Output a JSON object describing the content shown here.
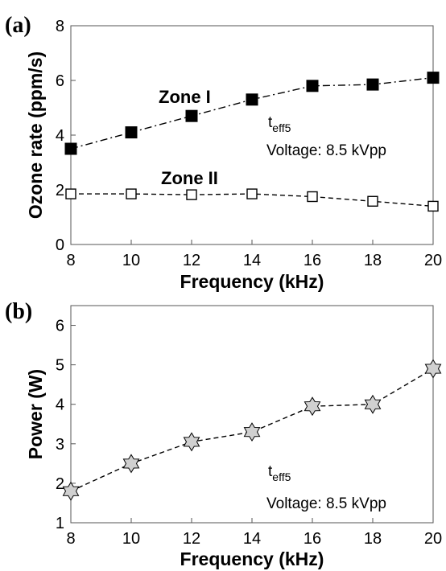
{
  "chart_data": [
    {
      "panel": "(a)",
      "type": "line",
      "xlabel": "Frequency (kHz)",
      "ylabel": "Ozone rate (ppm/s)",
      "xlim": [
        8,
        20
      ],
      "ylim": [
        0,
        8
      ],
      "xticks": [
        8,
        10,
        12,
        14,
        16,
        18,
        20
      ],
      "yticks": [
        0,
        2,
        4,
        6,
        8
      ],
      "grid": false,
      "x": [
        8,
        10,
        12,
        14,
        16,
        18,
        20
      ],
      "series": [
        {
          "name": "Zone I",
          "values": [
            3.5,
            4.1,
            4.7,
            5.3,
            5.8,
            5.85,
            6.1
          ],
          "marker": "filled-square",
          "line": "dash-dot",
          "color": "#000000"
        },
        {
          "name": "Zone II",
          "values": [
            1.85,
            1.85,
            1.82,
            1.85,
            1.75,
            1.58,
            1.4
          ],
          "marker": "open-square",
          "line": "dashed",
          "color": "#000000"
        }
      ],
      "annotations": {
        "t_main": "t",
        "t_sub": "eff5",
        "voltage": "Voltage: 8.5 kVpp"
      }
    },
    {
      "panel": "(b)",
      "type": "line",
      "xlabel": "Frequency (kHz)",
      "ylabel": "Power (W)",
      "xlim": [
        8,
        20
      ],
      "ylim": [
        1,
        6.5
      ],
      "xticks": [
        8,
        10,
        12,
        14,
        16,
        18,
        20
      ],
      "yticks": [
        1,
        2,
        3,
        4,
        5,
        6
      ],
      "grid": false,
      "x": [
        8,
        10,
        12,
        14,
        16,
        18,
        20
      ],
      "series": [
        {
          "values": [
            1.8,
            2.5,
            3.05,
            3.3,
            3.95,
            4.0,
            4.9
          ],
          "marker": "star",
          "line": "dashed",
          "color": "#d0d0d0"
        }
      ],
      "annotations": {
        "t_main": "t",
        "t_sub": "eff5",
        "voltage": "Voltage: 8.5 kVpp"
      }
    }
  ]
}
